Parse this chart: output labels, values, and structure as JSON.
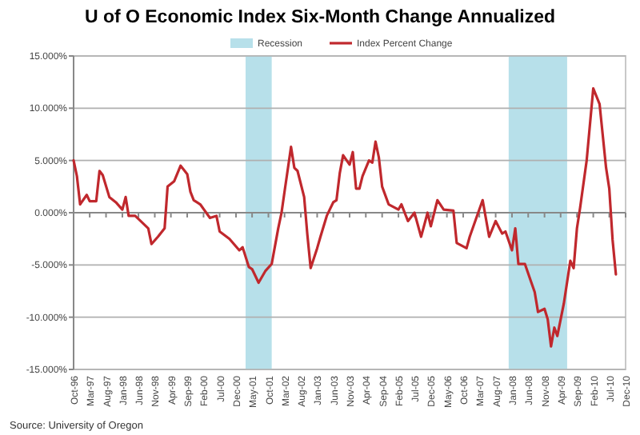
{
  "chart_data": {
    "type": "line",
    "title": "U of O Economic Index Six-Month Change Annualized",
    "x": [
      "1996-10",
      "1996-11",
      "1996-12",
      "1997-02",
      "1997-03",
      "1997-05",
      "1997-06",
      "1997-07",
      "1997-09",
      "1997-11",
      "1998-01",
      "1998-02",
      "1998-03",
      "1998-05",
      "1998-09",
      "1998-10",
      "1998-12",
      "1999-02",
      "1999-03",
      "1999-05",
      "1999-07",
      "1999-09",
      "1999-10",
      "1999-11",
      "2000-01",
      "2000-04",
      "2000-06",
      "2000-07",
      "2000-10",
      "2001-01",
      "2001-02",
      "2001-04",
      "2001-05",
      "2001-07",
      "2001-09",
      "2001-11",
      "2002-01",
      "2002-02",
      "2002-03",
      "2002-05",
      "2002-06",
      "2002-07",
      "2002-09",
      "2002-10",
      "2002-11",
      "2003-01",
      "2003-02",
      "2003-04",
      "2003-06",
      "2003-07",
      "2003-08",
      "2003-09",
      "2003-11",
      "2003-12",
      "2004-01",
      "2004-02",
      "2004-03",
      "2004-05",
      "2004-06",
      "2004-07",
      "2004-08",
      "2004-09",
      "2004-11",
      "2005-02",
      "2005-03",
      "2005-05",
      "2005-07",
      "2005-09",
      "2005-11",
      "2005-12",
      "2006-02",
      "2006-04",
      "2006-07",
      "2006-08",
      "2006-11",
      "2006-12",
      "2007-02",
      "2007-04",
      "2007-06",
      "2007-08",
      "2007-10",
      "2007-11",
      "2008-01",
      "2008-02",
      "2008-03",
      "2008-05",
      "2008-07",
      "2008-08",
      "2008-09",
      "2008-11",
      "2008-12",
      "2009-01",
      "2009-02",
      "2009-03",
      "2009-05",
      "2009-07",
      "2009-08",
      "2009-09",
      "2009-10",
      "2009-12",
      "2010-02",
      "2010-04",
      "2010-06",
      "2010-07",
      "2010-08",
      "2010-09"
    ],
    "series": [
      {
        "name": "Index Percent Change",
        "color": "#c0282d",
        "values": [
          5.0,
          3.5,
          0.8,
          1.7,
          1.1,
          1.1,
          4.0,
          3.6,
          1.5,
          1.0,
          0.3,
          1.5,
          -0.3,
          -0.3,
          -1.5,
          -3.0,
          -2.3,
          -1.5,
          2.5,
          3.0,
          4.5,
          3.7,
          2.0,
          1.2,
          0.8,
          -0.5,
          -0.3,
          -1.8,
          -2.5,
          -3.6,
          -3.3,
          -5.2,
          -5.4,
          -6.7,
          -5.6,
          -4.9,
          -1.5,
          0,
          2.0,
          6.3,
          4.3,
          4.0,
          1.5,
          -2.1,
          -5.3,
          -3.4,
          -2.3,
          -0.3,
          1.0,
          1.2,
          3.8,
          5.5,
          4.6,
          5.8,
          2.3,
          2.3,
          3.5,
          5.0,
          4.8,
          6.8,
          5.3,
          2.5,
          0.8,
          0.3,
          0.8,
          -0.8,
          0,
          -2.3,
          0,
          -1.3,
          1.2,
          0.3,
          0.2,
          -2.9,
          -3.4,
          -2.3,
          -0.5,
          1.2,
          -2.3,
          -0.8,
          -2.0,
          -1.8,
          -3.6,
          -1.5,
          -4.9,
          -4.9,
          -6.7,
          -7.6,
          -9.5,
          -9.2,
          -10.2,
          -12.8,
          -11.0,
          -11.8,
          -8.7,
          -4.6,
          -5.3,
          -1.5,
          0.5,
          5.0,
          11.9,
          10.4,
          4.3,
          2.3,
          -2.6,
          -5.9
        ]
      }
    ],
    "xlim": [
      "1996-10",
      "2010-12"
    ],
    "xticks": [
      {
        "value": "1996-10",
        "label": "Oct-96"
      },
      {
        "value": "1997-03",
        "label": "Mar-97"
      },
      {
        "value": "1997-08",
        "label": "Aug-97"
      },
      {
        "value": "1998-01",
        "label": "Jan-98"
      },
      {
        "value": "1998-06",
        "label": "Jun-98"
      },
      {
        "value": "1998-11",
        "label": "Nov-98"
      },
      {
        "value": "1999-04",
        "label": "Apr-99"
      },
      {
        "value": "1999-09",
        "label": "Sep-99"
      },
      {
        "value": "2000-02",
        "label": "Feb-00"
      },
      {
        "value": "2000-07",
        "label": "Jul-00"
      },
      {
        "value": "2000-12",
        "label": "Dec-00"
      },
      {
        "value": "2001-05",
        "label": "May-01"
      },
      {
        "value": "2001-10",
        "label": "Oct-01"
      },
      {
        "value": "2002-03",
        "label": "Mar-02"
      },
      {
        "value": "2002-08",
        "label": "Aug-02"
      },
      {
        "value": "2003-01",
        "label": "Jan-03"
      },
      {
        "value": "2003-06",
        "label": "Jun-03"
      },
      {
        "value": "2003-11",
        "label": "Nov-03"
      },
      {
        "value": "2004-04",
        "label": "Apr-04"
      },
      {
        "value": "2004-09",
        "label": "Sep-04"
      },
      {
        "value": "2005-02",
        "label": "Feb-05"
      },
      {
        "value": "2005-07",
        "label": "Jul-05"
      },
      {
        "value": "2005-12",
        "label": "Dec-05"
      },
      {
        "value": "2006-05",
        "label": "May-06"
      },
      {
        "value": "2006-10",
        "label": "Oct-06"
      },
      {
        "value": "2007-03",
        "label": "Mar-07"
      },
      {
        "value": "2007-08",
        "label": "Aug-07"
      },
      {
        "value": "2008-01",
        "label": "Jan-08"
      },
      {
        "value": "2008-06",
        "label": "Jun-08"
      },
      {
        "value": "2008-11",
        "label": "Nov-08"
      },
      {
        "value": "2009-04",
        "label": "Apr-09"
      },
      {
        "value": "2009-09",
        "label": "Sep-09"
      },
      {
        "value": "2010-02",
        "label": "Feb-10"
      },
      {
        "value": "2010-07",
        "label": "Jul-10"
      },
      {
        "value": "2010-12",
        "label": "Dec-10"
      }
    ],
    "ylim": [
      -15,
      15
    ],
    "yticks": [
      {
        "value": -15,
        "label": "-15.000%"
      },
      {
        "value": -10,
        "label": "-10.000%"
      },
      {
        "value": -5,
        "label": "-5.000%"
      },
      {
        "value": 0,
        "label": "0.000%"
      },
      {
        "value": 5,
        "label": "5.000%"
      },
      {
        "value": 10,
        "label": "10.000%"
      },
      {
        "value": 15,
        "label": "15.000%"
      }
    ],
    "bands": [
      {
        "axis": "x",
        "from": "2001-03",
        "to": "2001-11",
        "label": "Recession",
        "color": "#b7e0ea"
      },
      {
        "axis": "x",
        "from": "2007-12",
        "to": "2009-06",
        "color": "#b7e0ea"
      }
    ],
    "grid": "y",
    "legend": "top right",
    "marker": "none",
    "line_style": "solid",
    "annotations": [
      "Source: University of Oregon"
    ]
  }
}
